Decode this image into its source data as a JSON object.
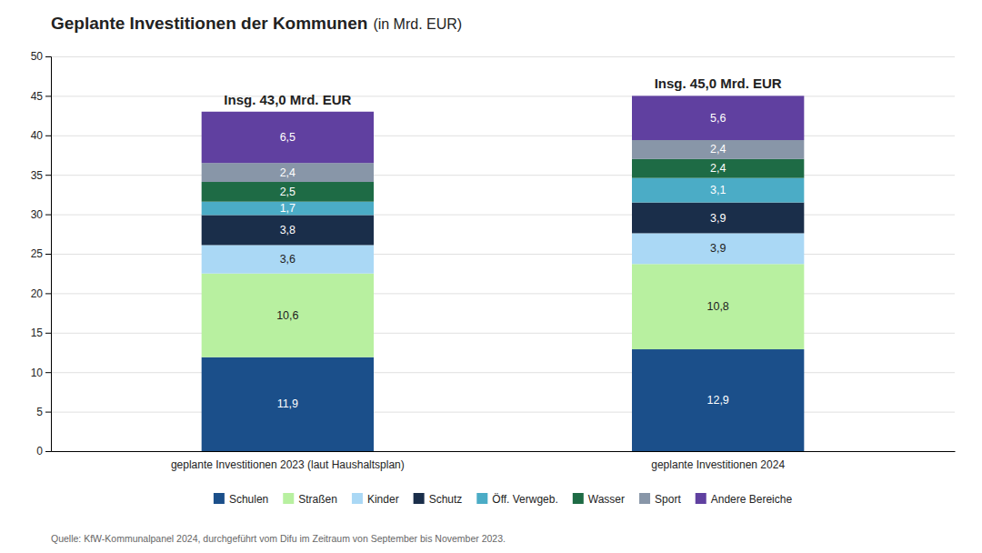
{
  "chart_data": {
    "type": "bar",
    "stacked": true,
    "title": "Geplante Investitionen der Kommunen",
    "subtitle": "(in Mrd. EUR)",
    "categories": [
      "geplante Investitionen 2023 (laut Haushaltsplan)",
      "geplante Investitionen 2024"
    ],
    "series": [
      {
        "name": "Schulen",
        "color": "#1b4f8a",
        "values": [
          11.9,
          12.9
        ],
        "value_labels": [
          "11,9",
          "12,9"
        ]
      },
      {
        "name": "Straßen",
        "color": "#b8f0a0",
        "values": [
          10.6,
          10.8
        ],
        "value_labels": [
          "10,6",
          "10,8"
        ]
      },
      {
        "name": "Kinder",
        "color": "#aad8f5",
        "values": [
          3.6,
          3.9
        ],
        "value_labels": [
          "3,6",
          "3,9"
        ]
      },
      {
        "name": "Schutz",
        "color": "#1a2e4a",
        "values": [
          3.8,
          3.9
        ],
        "value_labels": [
          "3,8",
          "3,9"
        ]
      },
      {
        "name": "Öff. Verwgeb.",
        "color": "#4bacc6",
        "values": [
          1.7,
          3.1
        ],
        "value_labels": [
          "1,7",
          "3,1"
        ]
      },
      {
        "name": "Wasser",
        "color": "#1e6b45",
        "values": [
          2.5,
          2.4
        ],
        "value_labels": [
          "2,5",
          "2,4"
        ]
      },
      {
        "name": "Sport",
        "color": "#8896a8",
        "values": [
          2.4,
          2.4
        ],
        "value_labels": [
          "2,4",
          "2,4"
        ]
      },
      {
        "name": "Andere Bereiche",
        "color": "#6040a0",
        "values": [
          6.5,
          5.6
        ],
        "value_labels": [
          "6,5",
          "5,6"
        ]
      }
    ],
    "totals": [
      {
        "value": 43.0,
        "label": "Insg. 43,0 Mrd. EUR"
      },
      {
        "value": 45.0,
        "label": "Insg. 45,0 Mrd. EUR"
      }
    ],
    "source": "Quelle: KfW-Kommunalpanel 2024, durchgeführt vom Difu im Zeitraum von September bis November 2023.",
    "ylim": [
      0,
      50
    ],
    "yticks": [
      0,
      5,
      10,
      15,
      20,
      25,
      30,
      35,
      40,
      45,
      50
    ],
    "grid": true,
    "legend": "bottom",
    "data_labels": true
  }
}
